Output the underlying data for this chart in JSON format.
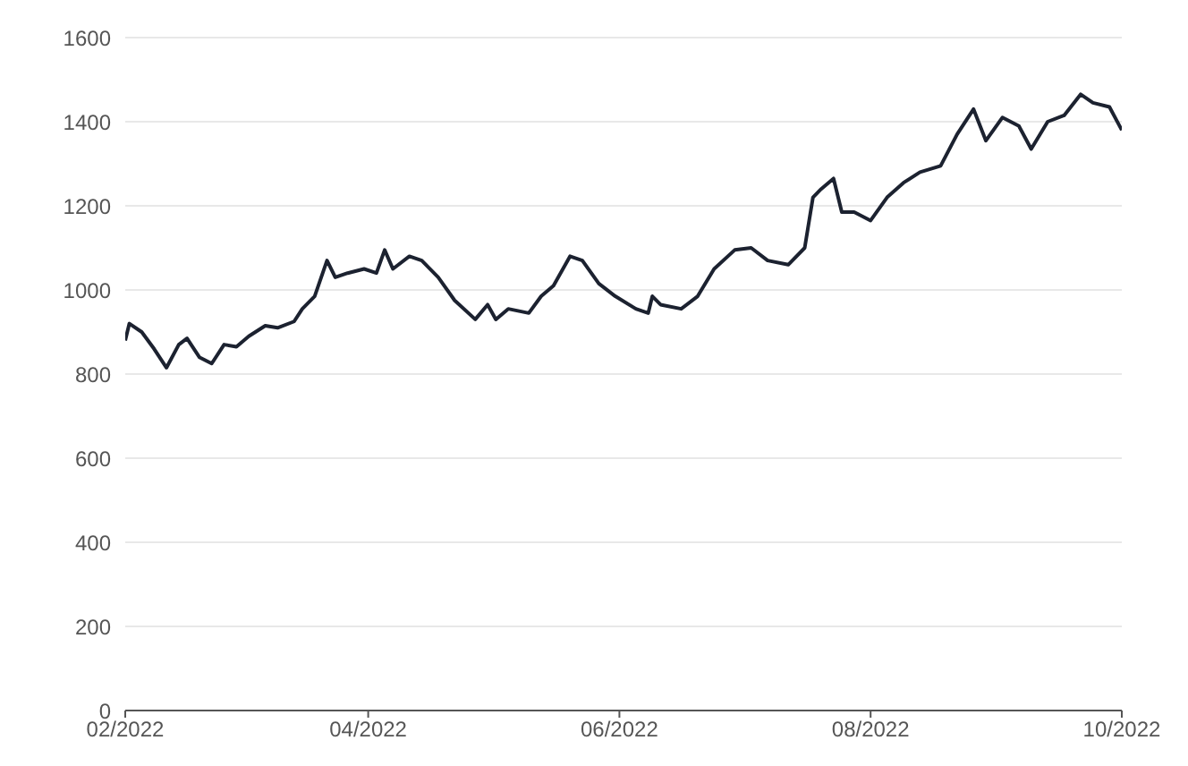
{
  "chart_data": {
    "type": "line",
    "x": [
      "2022-02-01",
      "2022-02-02",
      "2022-02-05",
      "2022-02-08",
      "2022-02-11",
      "2022-02-14",
      "2022-02-16",
      "2022-02-19",
      "2022-02-22",
      "2022-02-25",
      "2022-02-28",
      "2022-03-03",
      "2022-03-07",
      "2022-03-10",
      "2022-03-14",
      "2022-03-16",
      "2022-03-19",
      "2022-03-22",
      "2022-03-24",
      "2022-03-27",
      "2022-03-31",
      "2022-04-03",
      "2022-04-05",
      "2022-04-07",
      "2022-04-11",
      "2022-04-14",
      "2022-04-18",
      "2022-04-22",
      "2022-04-27",
      "2022-04-30",
      "2022-05-02",
      "2022-05-05",
      "2022-05-10",
      "2022-05-13",
      "2022-05-16",
      "2022-05-20",
      "2022-05-23",
      "2022-05-27",
      "2022-05-31",
      "2022-06-05",
      "2022-06-08",
      "2022-06-09",
      "2022-06-11",
      "2022-06-16",
      "2022-06-20",
      "2022-06-24",
      "2022-06-29",
      "2022-07-03",
      "2022-07-07",
      "2022-07-12",
      "2022-07-16",
      "2022-07-18",
      "2022-07-20",
      "2022-07-23",
      "2022-07-25",
      "2022-07-28",
      "2022-08-01",
      "2022-08-05",
      "2022-08-09",
      "2022-08-13",
      "2022-08-18",
      "2022-08-22",
      "2022-08-26",
      "2022-08-29",
      "2022-09-02",
      "2022-09-06",
      "2022-09-09",
      "2022-09-13",
      "2022-09-17",
      "2022-09-21",
      "2022-09-24",
      "2022-09-28",
      "2022-10-01"
    ],
    "series": [
      {
        "color": "#1c2230",
        "values": [
          880,
          920,
          900,
          860,
          815,
          870,
          885,
          840,
          825,
          870,
          865,
          890,
          915,
          910,
          925,
          955,
          985,
          1070,
          1030,
          1040,
          1050,
          1040,
          1095,
          1050,
          1080,
          1070,
          1030,
          975,
          930,
          965,
          930,
          955,
          945,
          985,
          1010,
          1080,
          1070,
          1015,
          985,
          955,
          945,
          985,
          965,
          955,
          985,
          1050,
          1095,
          1100,
          1070,
          1060,
          1100,
          1220,
          1240,
          1265,
          1185,
          1185,
          1165,
          1220,
          1255,
          1280,
          1295,
          1370,
          1430,
          1355,
          1410,
          1390,
          1335,
          1400,
          1415,
          1465,
          1445,
          1435,
          1380
        ]
      }
    ],
    "xlim": [
      "2022-02-01",
      "2022-10-01"
    ],
    "xticks": [
      {
        "value": "2022-02-01",
        "label": "02/2022"
      },
      {
        "value": "2022-04-01",
        "label": "04/2022"
      },
      {
        "value": "2022-06-01",
        "label": "06/2022"
      },
      {
        "value": "2022-08-01",
        "label": "08/2022"
      },
      {
        "value": "2022-10-01",
        "label": "10/2022"
      }
    ],
    "ylim": [
      0,
      1600
    ],
    "yticks": [
      0,
      200,
      400,
      600,
      800,
      1000,
      1200,
      1400,
      1600
    ],
    "grid": "y",
    "legend": false,
    "marker": "none",
    "line_style": "solid"
  }
}
